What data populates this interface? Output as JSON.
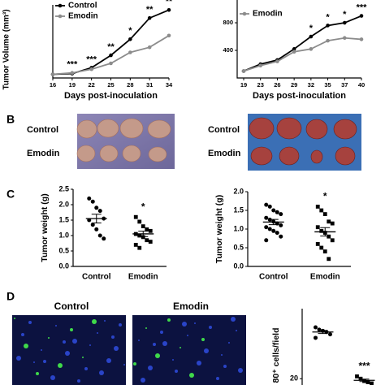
{
  "panels": {
    "B": {
      "label": "B",
      "left_rows": [
        "Control",
        "Emodin"
      ],
      "right_rows": [
        "Control",
        "Emodin"
      ]
    },
    "C": {
      "label": "C"
    },
    "D": {
      "label": "D",
      "columns": [
        "Control",
        "Emodin"
      ]
    }
  },
  "chart_data": [
    {
      "type": "line",
      "y_label": "Tumor Volume (mm³)",
      "x_label": "Days post-inoculation",
      "x": [
        16,
        19,
        22,
        25,
        28,
        31,
        34
      ],
      "xlim": [
        16,
        34
      ],
      "xticks": [
        16,
        19,
        22,
        25,
        28,
        31,
        34
      ],
      "ylim": [
        0,
        1000
      ],
      "series": [
        {
          "name": "Control",
          "color": "#000000",
          "values": [
            50,
            60,
            140,
            310,
            530,
            820,
            930
          ]
        },
        {
          "name": "Emodin",
          "color": "#8c8c8c",
          "values": [
            50,
            70,
            120,
            200,
            350,
            420,
            580
          ]
        }
      ],
      "annotations": [
        "***",
        "***",
        "**",
        "*",
        "**",
        "**"
      ],
      "annotation_x": [
        19,
        22,
        25,
        28,
        31,
        34
      ]
    },
    {
      "type": "line",
      "x_label": "Days post-inoculation",
      "categories": [
        "19",
        "23",
        "26",
        "29",
        "32",
        "35",
        "37",
        "40"
      ],
      "ylim": [
        0,
        1130
      ],
      "yticks": [
        400,
        800
      ],
      "series": [
        {
          "color": "#000000",
          "values": [
            100,
            200,
            260,
            420,
            600,
            760,
            800,
            900
          ]
        },
        {
          "name": "Emodin",
          "color": "#8c8c8c",
          "values": [
            100,
            180,
            240,
            380,
            420,
            540,
            580,
            560
          ]
        }
      ],
      "annotations": [
        "*",
        "*",
        "*",
        "***"
      ],
      "annotation_x": [
        "32",
        "35",
        "37",
        "40"
      ]
    },
    {
      "type": "dot",
      "y_label": "Tumor weight (g)",
      "ylim": [
        0,
        2.5
      ],
      "yticks": [
        {
          "value": 0,
          "label": "0.0"
        },
        {
          "value": 0.5,
          "label": "0.5"
        },
        {
          "value": 1,
          "label": "1.0"
        },
        {
          "value": 1.5,
          "label": "1.5"
        },
        {
          "value": 2,
          "label": "2.0"
        },
        {
          "value": 2.5,
          "label": "2.5"
        }
      ],
      "groups": [
        {
          "name": "Control",
          "marker": "circle",
          "values": [
            2.2,
            2.1,
            1.9,
            1.8,
            1.55,
            1.5,
            1.35,
            1.2,
            1.0,
            0.9
          ]
        },
        {
          "name": "Emodin",
          "marker": "square",
          "significance": "*",
          "values": [
            1.6,
            1.45,
            1.3,
            1.2,
            1.15,
            1.05,
            1.0,
            0.95,
            0.85,
            0.8,
            0.7,
            0.6
          ]
        }
      ]
    },
    {
      "type": "dot",
      "y_label": "Tumor weight (g)",
      "ylim": [
        0,
        2
      ],
      "yticks": [
        {
          "value": 0,
          "label": "0.0"
        },
        {
          "value": 0.5,
          "label": "0.5"
        },
        {
          "value": 1,
          "label": "1.0"
        },
        {
          "value": 1.5,
          "label": "1.5"
        },
        {
          "value": 2,
          "label": "2.0"
        }
      ],
      "groups": [
        {
          "name": "Control",
          "marker": "circle",
          "values": [
            1.65,
            1.6,
            1.5,
            1.45,
            1.4,
            1.3,
            1.25,
            1.2,
            1.15,
            1.1,
            1.05,
            1.0,
            0.95,
            0.9,
            0.8,
            0.7
          ]
        },
        {
          "name": "Emodin",
          "marker": "square",
          "significance": "*",
          "values": [
            1.6,
            1.5,
            1.4,
            1.2,
            1.15,
            1.05,
            0.95,
            0.9,
            0.8,
            0.7,
            0.6,
            0.5,
            0.4,
            0.2
          ]
        }
      ]
    },
    {
      "type": "dot",
      "y_label": "80⁺ cells/field",
      "ylim": [
        0,
        80
      ],
      "yticks": [
        20
      ],
      "groups": [
        {
          "marker": "circle",
          "values": [
            64,
            62,
            61,
            60,
            58,
            55
          ]
        },
        {
          "marker": "square",
          "significance": "***",
          "values": [
            22,
            20,
            18,
            17,
            16
          ]
        }
      ]
    }
  ]
}
